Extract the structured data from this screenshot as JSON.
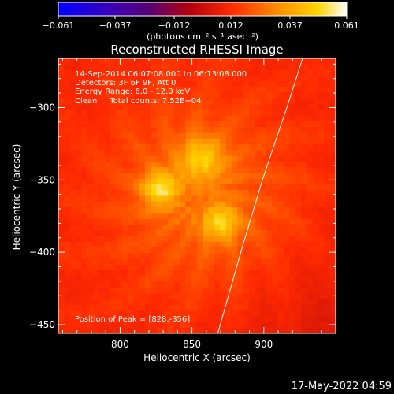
{
  "chart_data": {
    "type": "heatmap",
    "title": "Reconstructed RHESSI Image",
    "xlabel": "Heliocentric X (arcsec)",
    "ylabel": "Heliocentric Y (arcsec)",
    "xlim": [
      757,
      950
    ],
    "ylim": [
      -456,
      -266
    ],
    "x_ticks": [
      800,
      850,
      900
    ],
    "y_ticks": [
      -300,
      -350,
      -400,
      -450
    ],
    "colorbar": {
      "min": -0.061,
      "max": 0.061,
      "ticks": [
        -0.061,
        -0.037,
        -0.012,
        0.012,
        0.037,
        0.061
      ],
      "tick_labels": [
        "−0.061",
        "−0.037",
        "−0.012",
        "0.012",
        "0.037",
        "0.061"
      ],
      "unit_label": "(photons cm⁻² s⁻¹ asec⁻²)",
      "colormap": "blue-purple-red-orange-yellow-white"
    },
    "annotations": [
      "14-Sep-2014 06:07:08.000 to 06:13:08.000",
      "Detectors: 3F 6F 9F, Att 0",
      "Energy Range: 6.0 - 12.0 keV",
      "Clean     Total counts: 7.52E+04"
    ],
    "peak_label": "Position of Peak = [828,-356]",
    "peak": {
      "x": 828,
      "y": -356
    },
    "sources": [
      {
        "x": 828,
        "y": -356,
        "sigma": 9,
        "amp": 0.061
      },
      {
        "x": 870,
        "y": -380,
        "sigma": 9,
        "amp": 0.055
      },
      {
        "x": 857,
        "y": -335,
        "sigma": 11,
        "amp": 0.05
      }
    ],
    "limb_curve": [
      {
        "x": 868,
        "y": -456
      },
      {
        "x": 884,
        "y": -400
      },
      {
        "x": 899,
        "y": -350
      },
      {
        "x": 916,
        "y": -300
      },
      {
        "x": 927,
        "y": -266
      }
    ]
  },
  "footer": {
    "timestamp": "17-May-2022 04:59"
  }
}
